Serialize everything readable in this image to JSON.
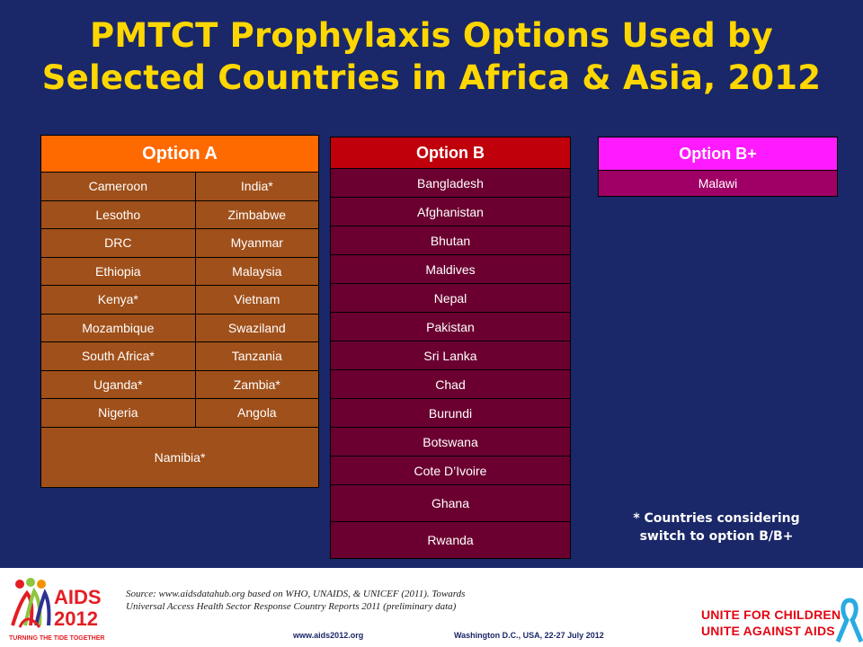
{
  "title": {
    "line1": "PMTCT Prophylaxis Options Used by",
    "line2": "Selected Countries in Africa & Asia, 2012"
  },
  "option_a": {
    "header": "Option A",
    "rows": [
      [
        "Cameroon",
        "India*"
      ],
      [
        "Lesotho",
        "Zimbabwe"
      ],
      [
        "DRC",
        "Myanmar"
      ],
      [
        "Ethiopia",
        "Malaysia"
      ],
      [
        "Kenya*",
        "Vietnam"
      ],
      [
        "Mozambique",
        "Swaziland"
      ],
      [
        "South Africa*",
        "Tanzania"
      ],
      [
        "Uganda*",
        "Zambia*"
      ],
      [
        "Nigeria",
        "Angola"
      ]
    ],
    "last": "Namibia*"
  },
  "option_b": {
    "header": "Option B",
    "rows": [
      "Bangladesh",
      "Afghanistan",
      "Bhutan",
      "Maldives",
      "Nepal",
      "Pakistan",
      "Sri Lanka",
      "Chad",
      "Burundi",
      "Botswana",
      "Cote D’Ivoire",
      "Ghana",
      "Rwanda"
    ]
  },
  "option_b_plus": {
    "header": "Option B+",
    "rows": [
      "Malawi"
    ]
  },
  "note": {
    "line1": "* Countries considering",
    "line2": "switch to option B/B+"
  },
  "footer": {
    "source_line1": "Source: www.aidsdatahub.org based on WHO, UNAIDS, & UNICEF (2011). Towards",
    "source_line2": "Universal Access Health Sector Response Country Reports 2011 (preliminary data)",
    "url": "www.aids2012.org",
    "location": "Washington D.C., USA, 22-27 July 2012",
    "logo_left": {
      "name": "AIDS",
      "year": "2012",
      "tagline": "TURNING THE TIDE TOGETHER"
    },
    "logo_right": {
      "line1": "UNITE FOR CHILDREN",
      "line2": "UNITE AGAINST AIDS"
    }
  },
  "colors": {
    "background": "#1a2768",
    "title": "#ffd700",
    "option_a_header": "#ff6a00",
    "option_a_cell": "#a0501a",
    "option_b_header": "#c0000b",
    "option_b_cell": "#6b0030",
    "option_b_plus_header": "#ff1aff",
    "option_b_plus_cell": "#a00066"
  }
}
